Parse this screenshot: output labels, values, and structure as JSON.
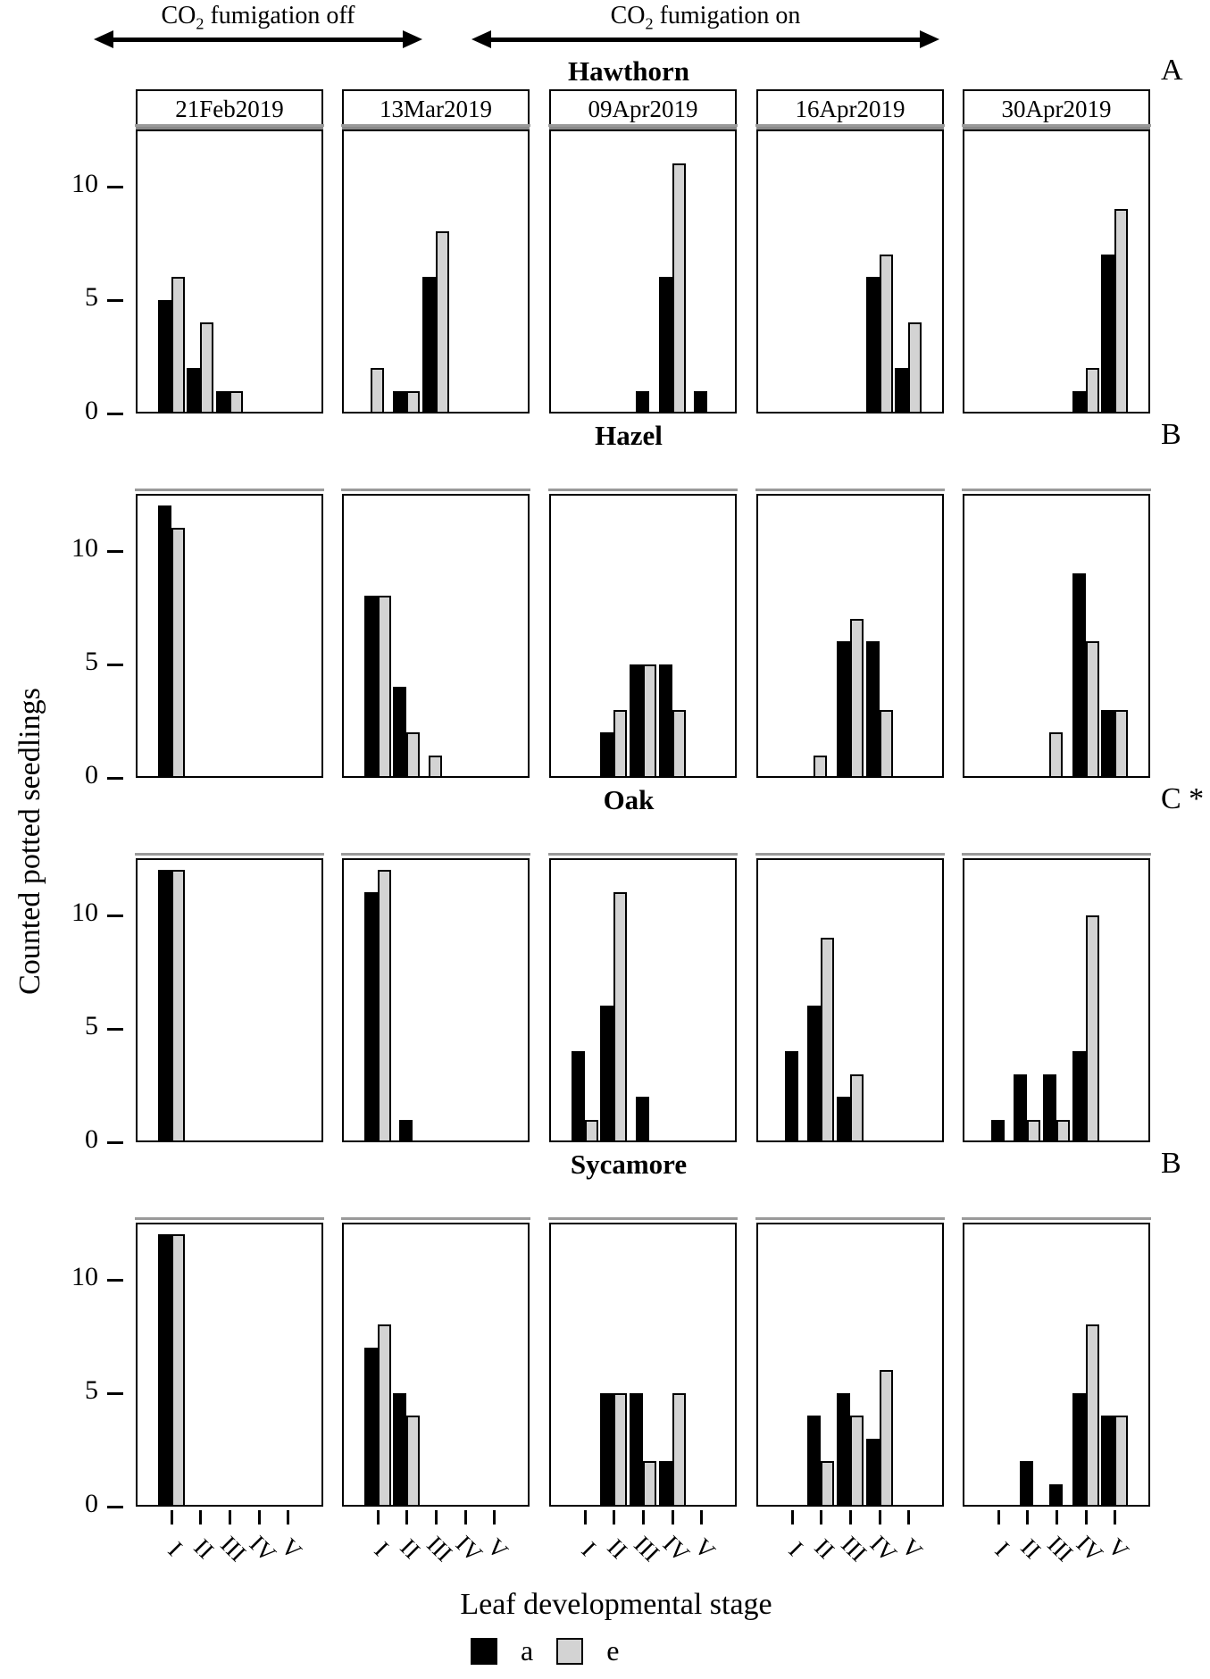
{
  "header": {
    "fumigation_off": {
      "prefix": "CO",
      "sub": "2",
      "rest": " fumigation off"
    },
    "fumigation_on": {
      "prefix": "CO",
      "sub": "2",
      "rest": " fumigation on"
    }
  },
  "legend": {
    "a_label": "a",
    "e_label": "e"
  },
  "chart_data": {
    "type": "bar",
    "xlabel": "Leaf developmental stage",
    "ylabel": "Counted potted seedlings",
    "yticks": [
      0,
      5,
      10
    ],
    "ylim": [
      0,
      12.5
    ],
    "grid": false,
    "legend_position": "bottom",
    "stages": [
      "I",
      "II",
      "III",
      "IV",
      "V"
    ],
    "dates": [
      "21Feb2019",
      "13Mar2019",
      "09Apr2019",
      "16Apr2019",
      "30Apr2019"
    ],
    "fumigation_groups": [
      {
        "label": "CO2 fumigation off",
        "date_columns": [
          0,
          1
        ]
      },
      {
        "label": "CO2 fumigation on",
        "date_columns": [
          2,
          3,
          4
        ]
      }
    ],
    "series_colors": {
      "a": "#000000",
      "e": "#d3d3d3"
    },
    "rows": [
      {
        "species": "Hawthorn",
        "letter": "A",
        "panels": [
          {
            "date": "21Feb2019",
            "a": [
              5,
              2,
              1,
              0,
              0
            ],
            "e": [
              6,
              4,
              1,
              0,
              0
            ]
          },
          {
            "date": "13Mar2019",
            "a": [
              0,
              1,
              6,
              0,
              0
            ],
            "e": [
              2,
              1,
              8,
              0,
              0
            ]
          },
          {
            "date": "09Apr2019",
            "a": [
              0,
              0,
              1,
              6,
              1
            ],
            "e": [
              0,
              0,
              0,
              11,
              0
            ]
          },
          {
            "date": "16Apr2019",
            "a": [
              0,
              0,
              0,
              6,
              2
            ],
            "e": [
              0,
              0,
              0,
              7,
              4
            ]
          },
          {
            "date": "30Apr2019",
            "a": [
              0,
              0,
              0,
              1,
              7
            ],
            "e": [
              0,
              0,
              0,
              2,
              9
            ]
          }
        ]
      },
      {
        "species": "Hazel",
        "letter": "B",
        "panels": [
          {
            "date": "21Feb2019",
            "a": [
              12,
              0,
              0,
              0,
              0
            ],
            "e": [
              11,
              0,
              0,
              0,
              0
            ]
          },
          {
            "date": "13Mar2019",
            "a": [
              8,
              4,
              0,
              0,
              0
            ],
            "e": [
              8,
              2,
              1,
              0,
              0
            ]
          },
          {
            "date": "09Apr2019",
            "a": [
              0,
              2,
              5,
              5,
              0
            ],
            "e": [
              0,
              3,
              5,
              3,
              0
            ]
          },
          {
            "date": "16Apr2019",
            "a": [
              0,
              0,
              6,
              6,
              0
            ],
            "e": [
              0,
              1,
              7,
              3,
              0
            ]
          },
          {
            "date": "30Apr2019",
            "a": [
              0,
              0,
              0,
              9,
              3
            ],
            "e": [
              0,
              0,
              2,
              6,
              3
            ]
          }
        ]
      },
      {
        "species": "Oak",
        "letter": "C *",
        "panels": [
          {
            "date": "21Feb2019",
            "a": [
              12,
              0,
              0,
              0,
              0
            ],
            "e": [
              12,
              0,
              0,
              0,
              0
            ]
          },
          {
            "date": "13Mar2019",
            "a": [
              11,
              1,
              0,
              0,
              0
            ],
            "e": [
              12,
              0,
              0,
              0,
              0
            ]
          },
          {
            "date": "09Apr2019",
            "a": [
              4,
              6,
              2,
              0,
              0
            ],
            "e": [
              1,
              11,
              0,
              0,
              0
            ]
          },
          {
            "date": "16Apr2019",
            "a": [
              4,
              6,
              2,
              0,
              0
            ],
            "e": [
              0,
              9,
              3,
              0,
              0
            ]
          },
          {
            "date": "30Apr2019",
            "a": [
              1,
              3,
              3,
              4,
              0
            ],
            "e": [
              0,
              1,
              1,
              10,
              0
            ]
          }
        ]
      },
      {
        "species": "Sycamore",
        "letter": "B",
        "panels": [
          {
            "date": "21Feb2019",
            "a": [
              12,
              0,
              0,
              0,
              0
            ],
            "e": [
              12,
              0,
              0,
              0,
              0
            ]
          },
          {
            "date": "13Mar2019",
            "a": [
              7,
              5,
              0,
              0,
              0
            ],
            "e": [
              8,
              4,
              0,
              0,
              0
            ]
          },
          {
            "date": "09Apr2019",
            "a": [
              0,
              5,
              5,
              2,
              0
            ],
            "e": [
              0,
              5,
              2,
              5,
              0
            ]
          },
          {
            "date": "16Apr2019",
            "a": [
              0,
              4,
              5,
              3,
              0
            ],
            "e": [
              0,
              2,
              4,
              6,
              0
            ]
          },
          {
            "date": "30Apr2019",
            "a": [
              0,
              2,
              1,
              5,
              4
            ],
            "e": [
              0,
              0,
              0,
              8,
              4
            ]
          }
        ]
      }
    ]
  }
}
